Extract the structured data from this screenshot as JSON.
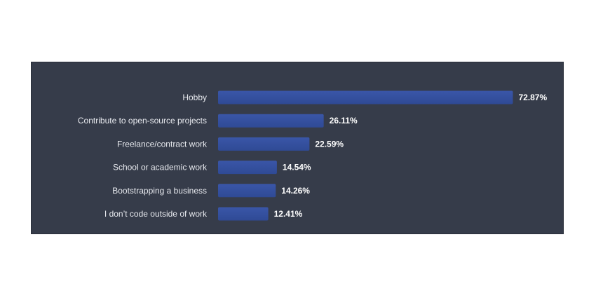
{
  "chart_data": {
    "type": "bar",
    "orientation": "horizontal",
    "categories": [
      "Hobby",
      "Contribute to open-source projects",
      "Freelance/contract work",
      "School or academic work",
      "Bootstrapping a business",
      "I don’t code outside of work"
    ],
    "values": [
      72.87,
      26.11,
      22.59,
      14.54,
      14.26,
      12.41
    ],
    "value_labels": [
      "72.87%",
      "26.11%",
      "22.59%",
      "14.54%",
      "14.26%",
      "12.41%"
    ],
    "xlim": [
      0,
      100
    ],
    "grid": false,
    "legend": "none",
    "colors": {
      "panel_background": "#363c4a",
      "bar_fill": "#2f4a95",
      "bar_highlight": "#3a56a8",
      "label_text": "#e8eaef",
      "value_text": "#ffffff"
    }
  }
}
